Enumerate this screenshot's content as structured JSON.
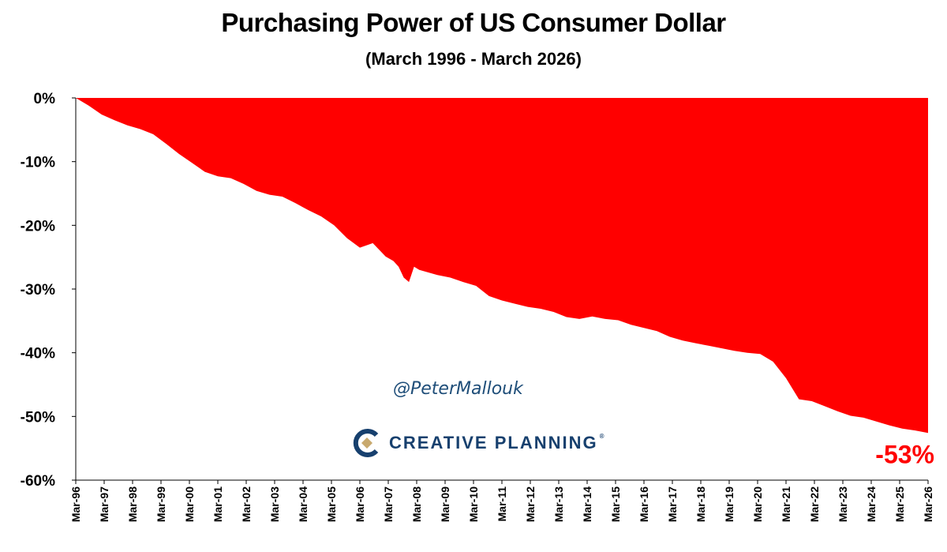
{
  "chart_data": {
    "type": "area",
    "title": "Purchasing Power of US Consumer Dollar",
    "subtitle": "(March 1996 - March 2026)",
    "ylim": [
      -60,
      0
    ],
    "ytick_labels": [
      "0%",
      "-10%",
      "-20%",
      "-30%",
      "-40%",
      "-50%",
      "-60%"
    ],
    "ytick_values": [
      0,
      -10,
      -20,
      -30,
      -40,
      -50,
      -60
    ],
    "categories": [
      "Mar-96",
      "Mar-97",
      "Mar-98",
      "Mar-99",
      "Mar-00",
      "Mar-01",
      "Mar-02",
      "Mar-03",
      "Mar-04",
      "Mar-05",
      "Mar-06",
      "Mar-07",
      "Mar-08",
      "Mar-09",
      "Mar-10",
      "Mar-11",
      "Mar-12",
      "Mar-13",
      "Mar-14",
      "Mar-15",
      "Mar-16",
      "Mar-17",
      "Mar-18",
      "Mar-19",
      "Mar-20",
      "Mar-21",
      "Mar-22",
      "Mar-23",
      "Mar-24",
      "Mar-25",
      "Mar-26"
    ],
    "series": [
      {
        "values": [
          [
            0,
            0
          ],
          [
            0.5,
            -1.2
          ],
          [
            1,
            -2.6
          ],
          [
            1.5,
            -3.5
          ],
          [
            2,
            -4.3
          ],
          [
            2.5,
            -4.9
          ],
          [
            3,
            -5.7
          ],
          [
            3.5,
            -7.2
          ],
          [
            4,
            -8.8
          ],
          [
            4.5,
            -10.2
          ],
          [
            5,
            -11.6
          ],
          [
            5.5,
            -12.3
          ],
          [
            6,
            -12.6
          ],
          [
            6.5,
            -13.5
          ],
          [
            7,
            -14.6
          ],
          [
            7.5,
            -15.2
          ],
          [
            8,
            -15.5
          ],
          [
            8.5,
            -16.5
          ],
          [
            9,
            -17.6
          ],
          [
            9.5,
            -18.6
          ],
          [
            10,
            -20.0
          ],
          [
            10.5,
            -22.0
          ],
          [
            11,
            -23.5
          ],
          [
            11.5,
            -22.8
          ],
          [
            12,
            -24.9
          ],
          [
            12.3,
            -25.6
          ],
          [
            12.5,
            -26.5
          ],
          [
            12.7,
            -28.2
          ],
          [
            12.9,
            -28.9
          ],
          [
            13.1,
            -26.5
          ],
          [
            13.3,
            -27.0
          ],
          [
            14,
            -27.8
          ],
          [
            14.5,
            -28.2
          ],
          [
            15,
            -28.9
          ],
          [
            15.5,
            -29.5
          ],
          [
            16,
            -31.1
          ],
          [
            16.5,
            -31.8
          ],
          [
            17,
            -32.3
          ],
          [
            17.5,
            -32.8
          ],
          [
            18,
            -33.1
          ],
          [
            18.5,
            -33.6
          ],
          [
            19,
            -34.4
          ],
          [
            19.5,
            -34.7
          ],
          [
            20,
            -34.3
          ],
          [
            20.5,
            -34.7
          ],
          [
            21,
            -34.9
          ],
          [
            21.5,
            -35.6
          ],
          [
            22,
            -36.1
          ],
          [
            22.5,
            -36.6
          ],
          [
            23,
            -37.5
          ],
          [
            23.5,
            -38.1
          ],
          [
            24,
            -38.5
          ],
          [
            24.5,
            -38.9
          ],
          [
            25,
            -39.3
          ],
          [
            25.5,
            -39.7
          ],
          [
            26,
            -40.0
          ],
          [
            26.5,
            -40.2
          ],
          [
            27,
            -41.4
          ],
          [
            27.5,
            -44.0
          ],
          [
            28,
            -47.3
          ],
          [
            28.5,
            -47.6
          ],
          [
            29,
            -48.4
          ],
          [
            29.5,
            -49.2
          ],
          [
            30,
            -49.9
          ],
          [
            30.5,
            -50.2
          ],
          [
            31,
            -50.8
          ],
          [
            31.5,
            -51.4
          ],
          [
            32,
            -51.9
          ],
          [
            32.5,
            -52.2
          ],
          [
            33,
            -52.6
          ]
        ]
      }
    ],
    "end_label": "-53%",
    "fill_color": "#ff0000",
    "end_label_color": "#ff0000",
    "grid": false
  },
  "watermark": {
    "handle": "@PeterMallouk",
    "brand_name": "CREATIVE PLANNING",
    "brand_tm": "®"
  }
}
